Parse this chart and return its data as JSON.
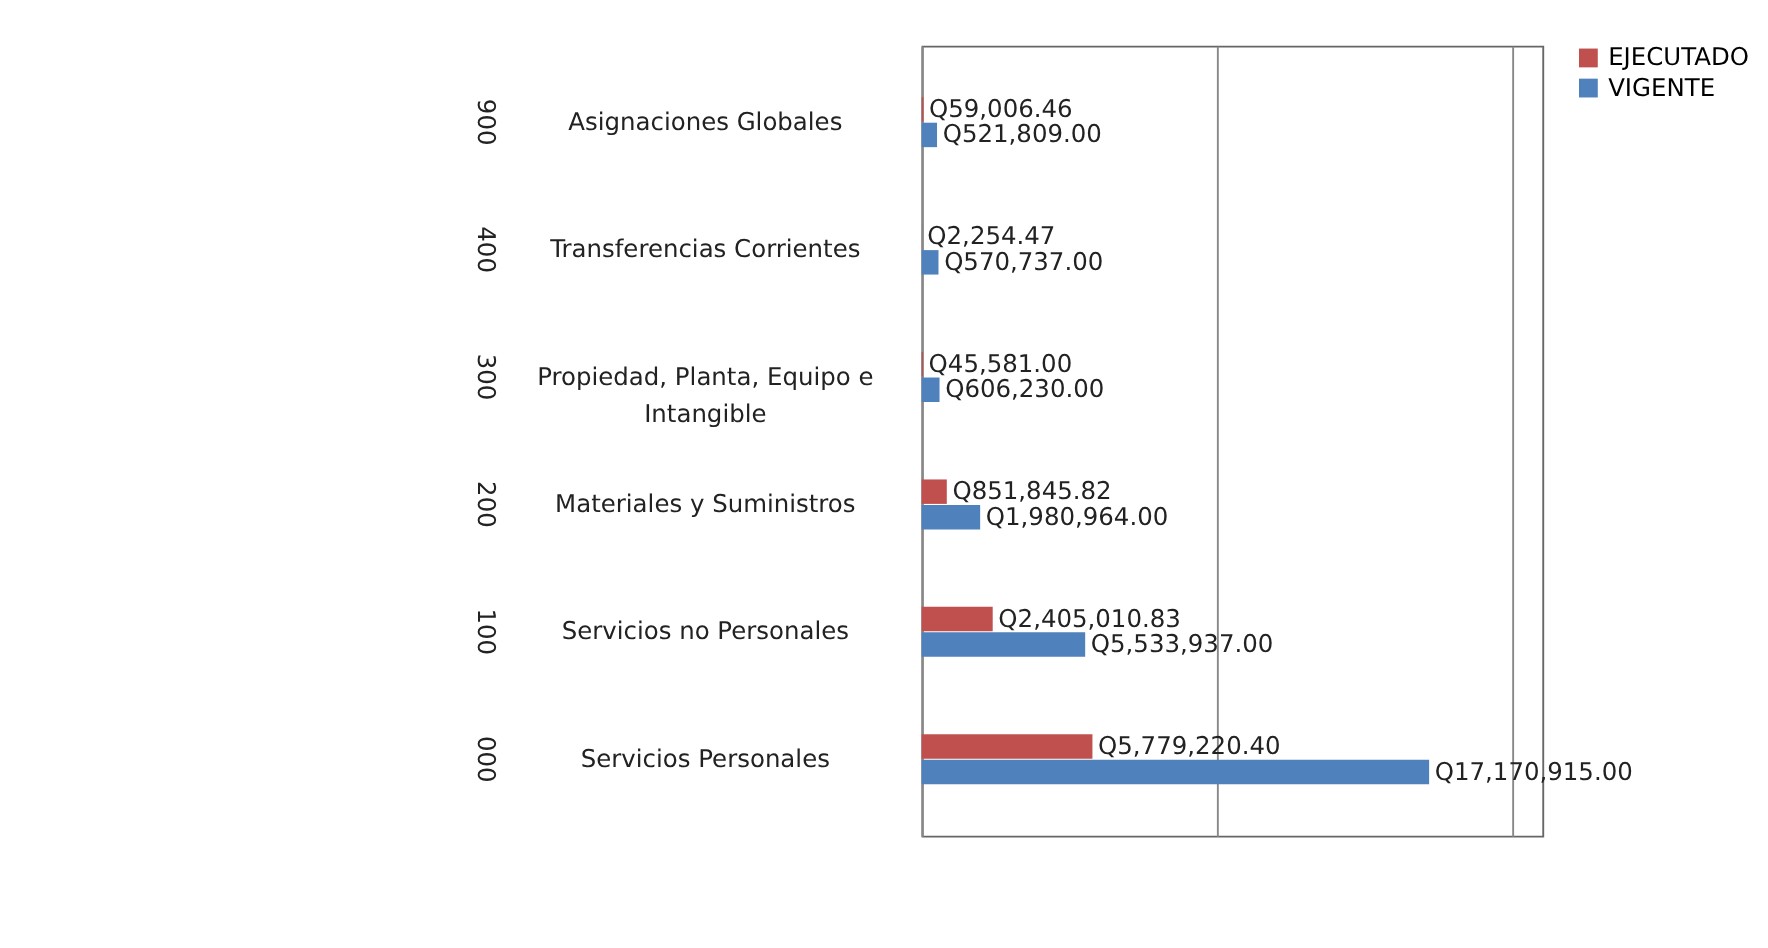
{
  "chart_data": {
    "type": "bar",
    "orientation": "horizontal",
    "categories": [
      "Asignaciones Globales",
      "Transferencias Corrientes",
      "Propiedad, Planta, Equipo e Intangible",
      "Materiales y Suministros",
      "Servicios no Personales",
      "Servicios Personales"
    ],
    "series": [
      {
        "name": "EJECUTADO",
        "color": "#c0504d",
        "values": [
          59006.46,
          2254.47,
          45581.0,
          851845.82,
          2405010.83,
          5779220.4
        ],
        "value_labels": [
          "Q59,006.46",
          "Q2,254.47",
          "Q45,581.00",
          "Q851,845.82",
          "Q2,405,010.83",
          "Q5,779,220.40"
        ]
      },
      {
        "name": "VIGENTE",
        "color": "#4f81bd",
        "values": [
          521809.0,
          570737.0,
          606230.0,
          1980964.0,
          5533937.0,
          17170915.0
        ],
        "value_labels": [
          "Q521,809.00",
          "Q570,737.00",
          "Q606,230.00",
          "Q1,980,964.00",
          "Q5,533,937.00",
          "Q17,170,915.00"
        ]
      }
    ],
    "xlim": [
      0,
      21000000
    ],
    "xticks": [
      {
        "value": 0,
        "label": null
      },
      {
        "value": 10000000,
        "label": null
      },
      {
        "value": 20000000,
        "label": null
      }
    ],
    "grid": "x",
    "legend": "right",
    "annotations": [
      "900",
      "400",
      "300",
      "200",
      "100",
      "000"
    ]
  }
}
